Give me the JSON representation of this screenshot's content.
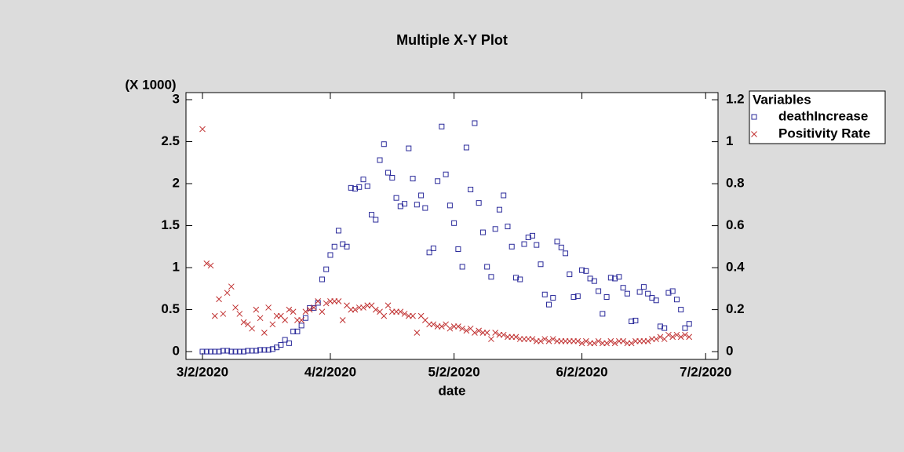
{
  "chart_data": {
    "type": "scatter",
    "title": "Multiple X-Y Plot",
    "xlabel": "date",
    "ylabel_note": "(X 1000)",
    "legend_title": "Variables",
    "x": [
      "3/2/2020",
      "3/3/2020",
      "3/4/2020",
      "3/5/2020",
      "3/6/2020",
      "3/7/2020",
      "3/8/2020",
      "3/9/2020",
      "3/10/2020",
      "3/11/2020",
      "3/12/2020",
      "3/13/2020",
      "3/14/2020",
      "3/15/2020",
      "3/16/2020",
      "3/17/2020",
      "3/18/2020",
      "3/19/2020",
      "3/20/2020",
      "3/21/2020",
      "3/22/2020",
      "3/23/2020",
      "3/24/2020",
      "3/25/2020",
      "3/26/2020",
      "3/27/2020",
      "3/28/2020",
      "3/29/2020",
      "3/30/2020",
      "3/31/2020",
      "4/1/2020",
      "4/2/2020",
      "4/3/2020",
      "4/4/2020",
      "4/5/2020",
      "4/6/2020",
      "4/7/2020",
      "4/8/2020",
      "4/9/2020",
      "4/10/2020",
      "4/11/2020",
      "4/12/2020",
      "4/13/2020",
      "4/14/2020",
      "4/15/2020",
      "4/16/2020",
      "4/17/2020",
      "4/18/2020",
      "4/19/2020",
      "4/20/2020",
      "4/21/2020",
      "4/22/2020",
      "4/23/2020",
      "4/24/2020",
      "4/25/2020",
      "4/26/2020",
      "4/27/2020",
      "4/28/2020",
      "4/29/2020",
      "4/30/2020",
      "5/1/2020",
      "5/2/2020",
      "5/3/2020",
      "5/4/2020",
      "5/5/2020",
      "5/6/2020",
      "5/7/2020",
      "5/8/2020",
      "5/9/2020",
      "5/10/2020",
      "5/11/2020",
      "5/12/2020",
      "5/13/2020",
      "5/14/2020",
      "5/15/2020",
      "5/16/2020",
      "5/17/2020",
      "5/18/2020",
      "5/19/2020",
      "5/20/2020",
      "5/21/2020",
      "5/22/2020",
      "5/23/2020",
      "5/24/2020",
      "5/25/2020",
      "5/26/2020",
      "5/27/2020",
      "5/28/2020",
      "5/29/2020",
      "5/30/2020",
      "5/31/2020",
      "6/1/2020",
      "6/2/2020",
      "6/3/2020",
      "6/4/2020",
      "6/5/2020",
      "6/6/2020",
      "6/7/2020",
      "6/8/2020",
      "6/9/2020",
      "6/10/2020",
      "6/11/2020",
      "6/12/2020",
      "6/13/2020",
      "6/14/2020",
      "6/15/2020",
      "6/16/2020",
      "6/17/2020",
      "6/18/2020",
      "6/19/2020",
      "6/20/2020",
      "6/21/2020",
      "6/22/2020",
      "6/23/2020",
      "6/24/2020",
      "6/25/2020",
      "6/26/2020",
      "6/27/2020",
      "6/28/2020"
    ],
    "series": [
      {
        "name": "deathIncrease",
        "color": "#2a2a9a",
        "marker": "square",
        "values": [
          0,
          0,
          0,
          0,
          0,
          0.01,
          0.01,
          0,
          0,
          0,
          0,
          0.01,
          0.01,
          0.01,
          0.02,
          0.02,
          0.02,
          0.03,
          0.05,
          0.08,
          0.14,
          0.1,
          0.24,
          0.24,
          0.31,
          0.4,
          0.52,
          0.52,
          0.58,
          0.86,
          0.98,
          1.15,
          1.25,
          1.44,
          1.28,
          1.25,
          1.95,
          1.94,
          1.96,
          2.05,
          1.97,
          1.63,
          1.57,
          2.28,
          2.47,
          2.13,
          2.07,
          1.83,
          1.73,
          1.76,
          2.42,
          2.06,
          1.75,
          1.86,
          1.71,
          1.18,
          1.23,
          2.03,
          2.68,
          2.11,
          1.74,
          1.53,
          1.22,
          1.01,
          2.43,
          1.93,
          2.72,
          1.77,
          1.42,
          1.01,
          0.89,
          1.46,
          1.69,
          1.86,
          1.49,
          1.25,
          0.88,
          0.86,
          1.28,
          1.36,
          1.38,
          1.27,
          1.04,
          0.68,
          0.56,
          0.64,
          1.31,
          1.24,
          1.17,
          0.92,
          0.65,
          0.66,
          0.97,
          0.96,
          0.87,
          0.84,
          0.72,
          0.45,
          0.65,
          0.88,
          0.87,
          0.89,
          0.76,
          0.69,
          0.36,
          0.37,
          0.71,
          0.77,
          0.69,
          0.64,
          0.61,
          0.3,
          0.28,
          0.7,
          0.72,
          0.62,
          0.5,
          0.28,
          0.33
        ]
      },
      {
        "name": "Positivity Rate",
        "color": "#c03030",
        "marker": "cross",
        "axis": "y2",
        "values": [
          1.06,
          0.42,
          0.41,
          0.17,
          0.25,
          0.18,
          0.28,
          0.31,
          0.21,
          0.18,
          0.14,
          0.13,
          0.11,
          0.2,
          0.16,
          0.09,
          0.21,
          0.13,
          0.17,
          0.17,
          0.15,
          0.2,
          0.19,
          0.15,
          0.15,
          0.19,
          0.2,
          0.21,
          0.24,
          0.19,
          0.23,
          0.24,
          0.24,
          0.24,
          0.15,
          0.22,
          0.2,
          0.2,
          0.21,
          0.21,
          0.22,
          0.22,
          0.2,
          0.19,
          0.17,
          0.22,
          0.19,
          0.19,
          0.19,
          0.18,
          0.17,
          0.17,
          0.09,
          0.17,
          0.15,
          0.13,
          0.13,
          0.12,
          0.12,
          0.13,
          0.11,
          0.12,
          0.12,
          0.11,
          0.1,
          0.11,
          0.09,
          0.1,
          0.09,
          0.09,
          0.06,
          0.09,
          0.08,
          0.08,
          0.07,
          0.07,
          0.07,
          0.06,
          0.06,
          0.06,
          0.06,
          0.05,
          0.05,
          0.06,
          0.05,
          0.06,
          0.05,
          0.05,
          0.05,
          0.05,
          0.05,
          0.05,
          0.04,
          0.05,
          0.04,
          0.04,
          0.05,
          0.04,
          0.04,
          0.05,
          0.04,
          0.05,
          0.05,
          0.04,
          0.04,
          0.05,
          0.05,
          0.05,
          0.05,
          0.06,
          0.06,
          0.07,
          0.06,
          0.08,
          0.07,
          0.08,
          0.07,
          0.08,
          0.07
        ]
      }
    ],
    "xlim": [
      "2/27/2020",
      "7/5/2020"
    ],
    "xticks": [
      "3/2/2020",
      "4/2/2020",
      "5/2/2020",
      "6/2/2020",
      "7/2/2020"
    ],
    "ylim": [
      -0.093,
      3.084
    ],
    "yticks": [
      0,
      0.5,
      1,
      1.5,
      2,
      2.5,
      3
    ],
    "y2lim": [
      -0.037,
      1.234
    ],
    "y2ticks": [
      0,
      0.2,
      0.4,
      0.6,
      0.8,
      1,
      1.2
    ]
  }
}
